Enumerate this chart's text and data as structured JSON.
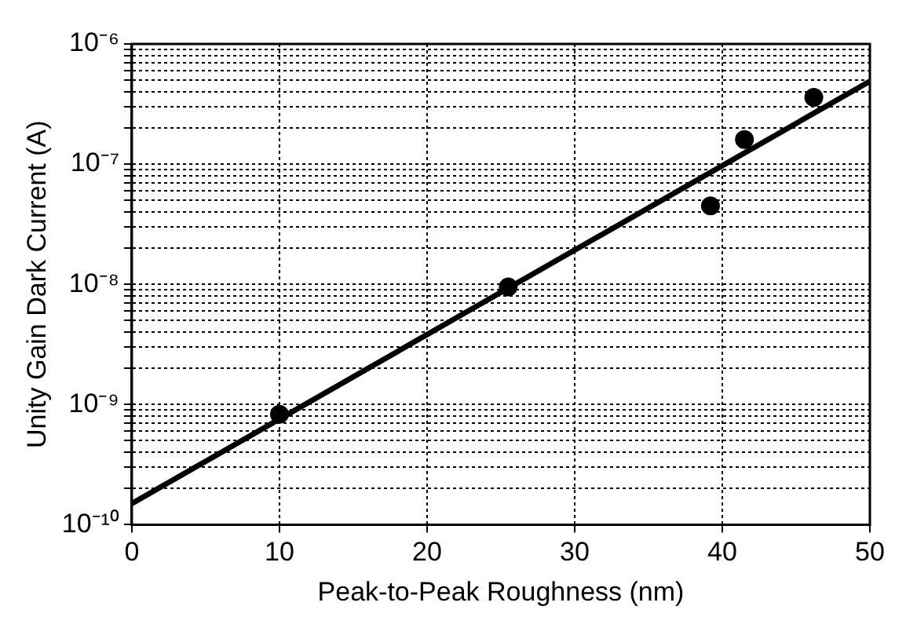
{
  "chart_data": {
    "type": "scatter",
    "xlabel": "Peak-to-Peak Roughness (nm)",
    "ylabel": "Unity Gain Dark Current (A)",
    "log": "y",
    "grid": true,
    "legend": false,
    "marker": "circle",
    "xlim": [
      0,
      50
    ],
    "xticks": [
      0,
      10,
      20,
      30,
      40,
      50
    ],
    "ylim": [
      1e-10,
      1e-06
    ],
    "yticks": [
      {
        "value": 1e-10,
        "label": "10⁻¹⁰"
      },
      {
        "value": 2e-10,
        "label": null
      },
      {
        "value": 3e-10,
        "label": null
      },
      {
        "value": 4e-10,
        "label": null
      },
      {
        "value": 5e-10,
        "label": null
      },
      {
        "value": 6e-10,
        "label": null
      },
      {
        "value": 7e-10,
        "label": null
      },
      {
        "value": 8e-10,
        "label": null
      },
      {
        "value": 9e-10,
        "label": null
      },
      {
        "value": 1e-09,
        "label": "10⁻⁹"
      },
      {
        "value": 2e-09,
        "label": null
      },
      {
        "value": 3e-09,
        "label": null
      },
      {
        "value": 4e-09,
        "label": null
      },
      {
        "value": 5e-09,
        "label": null
      },
      {
        "value": 6e-09,
        "label": null
      },
      {
        "value": 7e-09,
        "label": null
      },
      {
        "value": 8e-09,
        "label": null
      },
      {
        "value": 9e-09,
        "label": null
      },
      {
        "value": 1e-08,
        "label": "10⁻⁸"
      },
      {
        "value": 2e-08,
        "label": null
      },
      {
        "value": 3e-08,
        "label": null
      },
      {
        "value": 4e-08,
        "label": null
      },
      {
        "value": 5e-08,
        "label": null
      },
      {
        "value": 6e-08,
        "label": null
      },
      {
        "value": 7e-08,
        "label": null
      },
      {
        "value": 8e-08,
        "label": null
      },
      {
        "value": 9e-08,
        "label": null
      },
      {
        "value": 1e-07,
        "label": "10⁻⁷"
      },
      {
        "value": 2e-07,
        "label": null
      },
      {
        "value": 3e-07,
        "label": null
      },
      {
        "value": 4e-07,
        "label": null
      },
      {
        "value": 5e-07,
        "label": null
      },
      {
        "value": 6e-07,
        "label": null
      },
      {
        "value": 7e-07,
        "label": null
      },
      {
        "value": 8e-07,
        "label": null
      },
      {
        "value": 9e-07,
        "label": null
      },
      {
        "value": 1e-06,
        "label": "10⁻⁶"
      }
    ],
    "series": [
      {
        "color": "#000000",
        "x": [
          10,
          25.5,
          39.2,
          41.5,
          46.2
        ],
        "values": [
          8.3e-10,
          9.5e-09,
          4.5e-08,
          1.6e-07,
          3.6e-07
        ]
      },
      {
        "type": "line",
        "color": "#000000",
        "marker": "none",
        "x": [
          0,
          50
        ],
        "values": [
          1.5e-10,
          4.9e-07
        ]
      }
    ]
  }
}
